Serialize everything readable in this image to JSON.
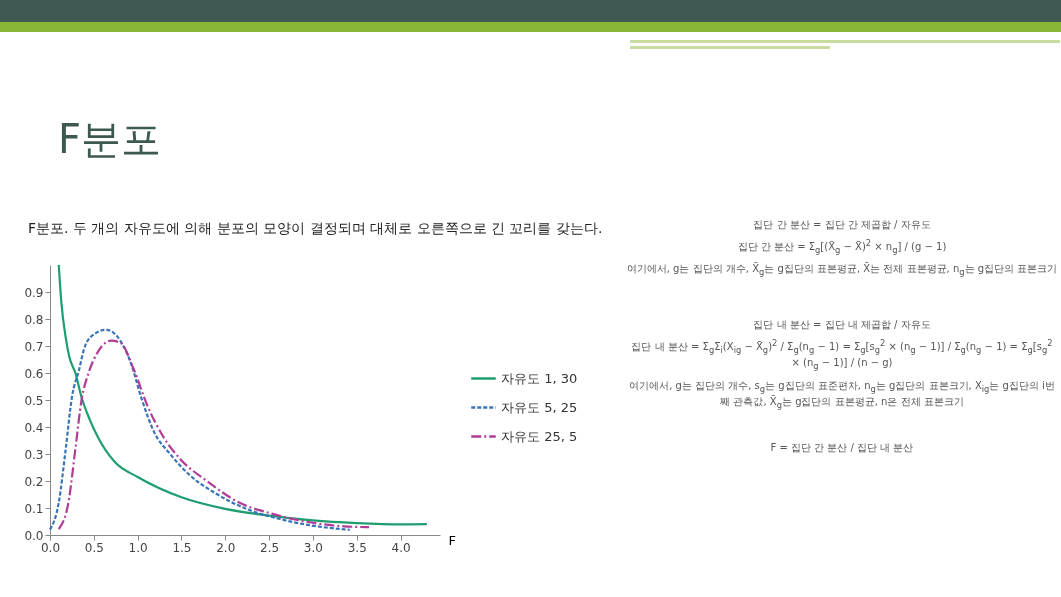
{
  "chart_data": {
    "type": "line",
    "title": "F분포",
    "subtitle": "F분포. 두 개의 자유도에 의해 분포의 모양이 결정되며 대체로 오른쪽으로 긴 꼬리를 갖는다.",
    "xlabel": "F",
    "xlim": [
      0,
      4.45
    ],
    "xticks": [
      {
        "value": 0,
        "label": "0.0"
      },
      0.5,
      {
        "value": 1,
        "label": "1.0"
      },
      1.5,
      {
        "value": 2,
        "label": "2.0"
      },
      2.5,
      {
        "value": 3,
        "label": "3.0"
      },
      3.5,
      {
        "value": 4,
        "label": "4.0"
      }
    ],
    "ylim": [
      0,
      1
    ],
    "yticks": [
      {
        "value": 0,
        "label": "0.0"
      },
      0.1,
      0.2,
      0.3,
      0.4,
      0.5,
      0.6,
      0.7,
      0.8,
      0.9
    ],
    "grid": false,
    "legend": "right",
    "marker": "none",
    "series": [
      {
        "name": "자유도 1, 30",
        "color": "#1e9e6e",
        "line_style": "solid",
        "x": [
          0.1,
          0.13,
          0.18,
          0.22,
          0.29,
          0.36,
          0.45,
          0.55,
          0.74,
          1.0,
          1.5,
          2.0,
          2.5,
          3.0,
          3.5,
          4.0,
          4.3
        ],
        "values": [
          1.0,
          0.86,
          0.73,
          0.66,
          0.6,
          0.51,
          0.43,
          0.36,
          0.27,
          0.215,
          0.14,
          0.097,
          0.072,
          0.054,
          0.044,
          0.039,
          0.04
        ]
      },
      {
        "name": "자유도 5, 25",
        "color": "#3a74b8",
        "line_style": "dashed",
        "x": [
          0,
          0.1,
          0.18,
          0.25,
          0.33,
          0.4,
          0.51,
          0.64,
          0.78,
          0.93,
          1.04,
          1.19,
          1.37,
          1.6,
          1.86,
          2.24,
          2.61,
          2.99,
          3.42
        ],
        "values": [
          0.02,
          0.12,
          0.32,
          0.51,
          0.61,
          0.7,
          0.745,
          0.76,
          0.73,
          0.63,
          0.51,
          0.38,
          0.3,
          0.22,
          0.16,
          0.097,
          0.06,
          0.035,
          0.019
        ]
      },
      {
        "name": "자유도 25, 5",
        "color": "#b03c96",
        "line_style": "dashdot",
        "x": [
          0.1,
          0.21,
          0.29,
          0.36,
          0.44,
          0.55,
          0.7,
          0.81,
          0.96,
          1.11,
          1.3,
          1.49,
          1.79,
          2.16,
          2.53,
          2.91,
          3.36,
          3.64
        ],
        "values": [
          0.022,
          0.12,
          0.32,
          0.5,
          0.6,
          0.68,
          0.72,
          0.71,
          0.61,
          0.48,
          0.36,
          0.28,
          0.2,
          0.12,
          0.079,
          0.05,
          0.032,
          0.029
        ]
      }
    ],
    "annotations": [
      "집단 간 분산 = 집단 간 제곱합 / 자유도",
      "집단 간 분산 = Σ$_{g}$[(X̄$_{g}$ − X̄)$^{2}$ × n$_{g}$] / (g − 1)",
      "여기에서, g는 집단의 개수, X̄$_{g}$는 g집단의 표본평균, X̄는 전체 표본평균, n$_{g}$는 g집단의 표본크기",
      "집단 내 분산 = 집단 내 제곱합 / 자유도",
      "집단 내 분산 = Σ$_{g}$Σ$_{i}$(X$_{ig}$ − X̄$_{g}$)$^{2}$ / Σ$_{g}$(n$_{g}$ − 1) = Σ$_{g}$[s$_{g}$$^{2}$ × (n$_{g}$ − 1)] / Σ$_{g}$(n$_{g}$ − 1) = Σ$_{g}$[s$_{g}$$^{2}$ × (n$_{g}$ − 1)] / (n − g)",
      "여기에서, g는 집단의 개수, s$_{g}$는 g집단의 표준편차, n$_{g}$는 g집단의 표본크기, X$_{ig}$는 g집단의 i번째 관측값, X̄$_{g}$는 g집단의 표본평균, n은 전체 표본크기",
      "F = 집단 간 분산 / 집단 내 분산"
    ]
  }
}
